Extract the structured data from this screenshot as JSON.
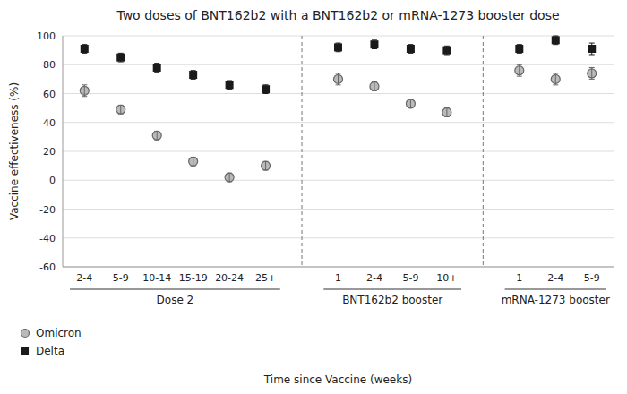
{
  "chart_data": {
    "type": "scatter",
    "title": "Two doses of BNT162b2 with a BNT162b2 or mRNA-1273 booster dose",
    "x_label": "Time since Vaccine (weeks)",
    "y_label": "Vaccine effectiveness (%)",
    "categories": [
      "2-4",
      "5-9",
      "10-14",
      "15-19",
      "20-24",
      "25+",
      null,
      "1",
      "2-4",
      "5-9",
      "10+",
      null,
      "1",
      "2-4",
      "5-9"
    ],
    "annotations": [
      "Dose 2",
      "BNT162b2 booster",
      "mRNA-1273 booster"
    ],
    "series": [
      {
        "name": "Omicron",
        "color": "#666666",
        "marker": "circle",
        "values": [
          62,
          49,
          31,
          13,
          2,
          10,
          null,
          70,
          65,
          53,
          47,
          null,
          76,
          70,
          74
        ],
        "error_low": [
          4,
          3,
          3,
          3,
          3,
          3,
          null,
          4,
          3,
          3,
          3,
          null,
          4,
          4,
          4
        ],
        "error_high": [
          4,
          3,
          3,
          3,
          3,
          3,
          null,
          4,
          3,
          3,
          3,
          null,
          4,
          4,
          4
        ]
      },
      {
        "name": "Delta",
        "color": "#1a1a1a",
        "marker": "square",
        "values": [
          91,
          85,
          78,
          73,
          66,
          63,
          null,
          92,
          94,
          91,
          90,
          null,
          91,
          97,
          91
        ],
        "error_low": [
          3,
          3,
          3,
          3,
          3,
          3,
          null,
          3,
          3,
          3,
          3,
          null,
          3,
          3,
          4
        ],
        "error_high": [
          3,
          3,
          3,
          3,
          3,
          3,
          null,
          3,
          3,
          3,
          3,
          null,
          3,
          3,
          4
        ]
      }
    ],
    "ylim": [
      -60,
      100
    ],
    "yticks": [
      -60,
      -40,
      -20,
      0,
      20,
      40,
      60,
      80,
      100
    ],
    "grid": true,
    "legend": "lower left"
  }
}
